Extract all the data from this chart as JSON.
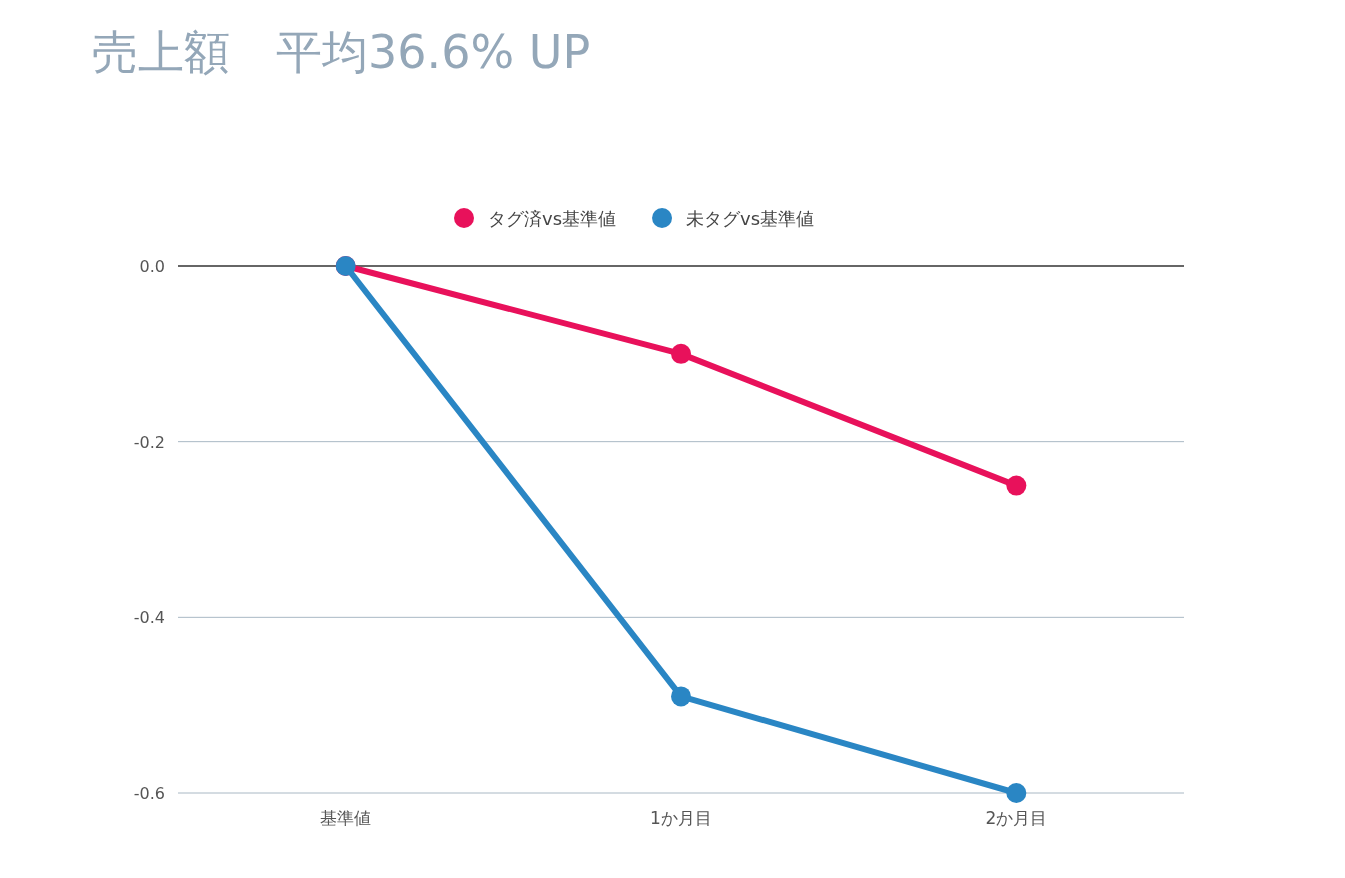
{
  "chart_data": {
    "type": "line",
    "title": "売上額　平均36.6% UP",
    "categories": [
      "基準値",
      "1か月目",
      "2か月目"
    ],
    "series": [
      {
        "name": "タグ済vs基準値",
        "color": "#e8115b",
        "values": [
          0,
          -0.1,
          -0.25
        ]
      },
      {
        "name": "未タグvs基準値",
        "color": "#2a86c4",
        "values": [
          0,
          -0.49,
          -0.6
        ]
      }
    ],
    "ylim": [
      -0.6,
      0
    ],
    "yticks": [
      {
        "value": 0,
        "label": "0.0"
      },
      -0.2,
      -0.4,
      -0.6
    ],
    "grid": "y",
    "legend": "top",
    "marker": "circle"
  }
}
